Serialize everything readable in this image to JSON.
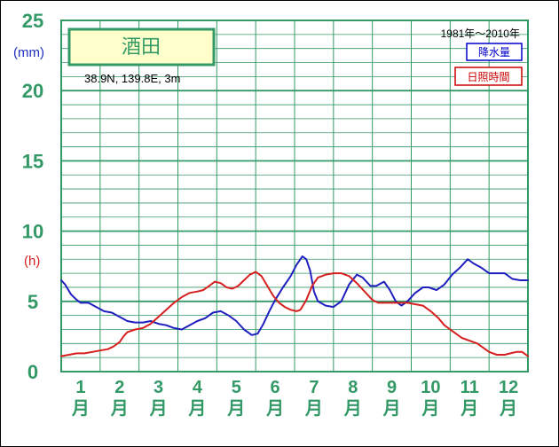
{
  "chart_data": {
    "type": "line",
    "station": "酒田",
    "location": "38.9N,  139.8E,  3m",
    "period": "1981年〜2010年",
    "left_units": {
      "precip": "(mm)",
      "sunshine": "(h)"
    },
    "y_ticks": [
      "0",
      "5",
      "10",
      "15",
      "20",
      "25"
    ],
    "ylim": [
      0,
      25
    ],
    "xlim": [
      0.5,
      12.5
    ],
    "x_labels": [
      {
        "num": "1",
        "unit": "月"
      },
      {
        "num": "2",
        "unit": "月"
      },
      {
        "num": "3",
        "unit": "月"
      },
      {
        "num": "4",
        "unit": "月"
      },
      {
        "num": "5",
        "unit": "月"
      },
      {
        "num": "6",
        "unit": "月"
      },
      {
        "num": "7",
        "unit": "月"
      },
      {
        "num": "8",
        "unit": "月"
      },
      {
        "num": "9",
        "unit": "月"
      },
      {
        "num": "10",
        "unit": "月"
      },
      {
        "num": "11",
        "unit": "月"
      },
      {
        "num": "12",
        "unit": "月"
      }
    ],
    "legend": [
      {
        "label": "降水量",
        "color": "#0000cc"
      },
      {
        "label": "日照時間",
        "color": "#cc0000"
      }
    ],
    "grid": true,
    "series": [
      {
        "name": "降水量",
        "color": "#1f1fbf",
        "points": [
          [
            0.5,
            6.5
          ],
          [
            0.6,
            6.2
          ],
          [
            0.75,
            5.5
          ],
          [
            0.9,
            5.1
          ],
          [
            1.0,
            4.9
          ],
          [
            1.2,
            4.9
          ],
          [
            1.4,
            4.6
          ],
          [
            1.6,
            4.3
          ],
          [
            1.8,
            4.2
          ],
          [
            2.0,
            3.9
          ],
          [
            2.2,
            3.6
          ],
          [
            2.4,
            3.5
          ],
          [
            2.6,
            3.5
          ],
          [
            2.8,
            3.6
          ],
          [
            3.0,
            3.4
          ],
          [
            3.2,
            3.3
          ],
          [
            3.4,
            3.1
          ],
          [
            3.6,
            3.0
          ],
          [
            3.8,
            3.3
          ],
          [
            4.0,
            3.6
          ],
          [
            4.2,
            3.8
          ],
          [
            4.4,
            4.2
          ],
          [
            4.6,
            4.3
          ],
          [
            4.8,
            4.0
          ],
          [
            5.0,
            3.6
          ],
          [
            5.2,
            3.0
          ],
          [
            5.4,
            2.6
          ],
          [
            5.55,
            2.7
          ],
          [
            5.7,
            3.4
          ],
          [
            5.85,
            4.3
          ],
          [
            6.0,
            5.1
          ],
          [
            6.2,
            6.0
          ],
          [
            6.4,
            6.8
          ],
          [
            6.55,
            7.6
          ],
          [
            6.7,
            8.2
          ],
          [
            6.8,
            8.0
          ],
          [
            6.9,
            7.2
          ],
          [
            7.0,
            5.7
          ],
          [
            7.1,
            5.0
          ],
          [
            7.3,
            4.7
          ],
          [
            7.5,
            4.6
          ],
          [
            7.7,
            5.0
          ],
          [
            7.9,
            6.2
          ],
          [
            8.1,
            6.9
          ],
          [
            8.25,
            6.7
          ],
          [
            8.45,
            6.1
          ],
          [
            8.6,
            6.1
          ],
          [
            8.8,
            6.4
          ],
          [
            8.95,
            5.8
          ],
          [
            9.1,
            5.0
          ],
          [
            9.25,
            4.7
          ],
          [
            9.4,
            5.0
          ],
          [
            9.6,
            5.6
          ],
          [
            9.8,
            6.0
          ],
          [
            9.95,
            6.0
          ],
          [
            10.15,
            5.8
          ],
          [
            10.35,
            6.2
          ],
          [
            10.55,
            6.9
          ],
          [
            10.75,
            7.4
          ],
          [
            10.95,
            8.0
          ],
          [
            11.1,
            7.7
          ],
          [
            11.3,
            7.4
          ],
          [
            11.5,
            7.0
          ],
          [
            11.7,
            7.0
          ],
          [
            11.9,
            7.0
          ],
          [
            12.1,
            6.6
          ],
          [
            12.3,
            6.5
          ],
          [
            12.5,
            6.5
          ]
        ]
      },
      {
        "name": "日照時間",
        "color": "#d61f1f",
        "points": [
          [
            0.5,
            1.1
          ],
          [
            0.7,
            1.2
          ],
          [
            0.9,
            1.3
          ],
          [
            1.1,
            1.3
          ],
          [
            1.3,
            1.4
          ],
          [
            1.5,
            1.5
          ],
          [
            1.7,
            1.6
          ],
          [
            1.85,
            1.8
          ],
          [
            2.0,
            2.1
          ],
          [
            2.1,
            2.5
          ],
          [
            2.2,
            2.8
          ],
          [
            2.4,
            3.0
          ],
          [
            2.6,
            3.1
          ],
          [
            2.8,
            3.4
          ],
          [
            3.0,
            3.9
          ],
          [
            3.2,
            4.4
          ],
          [
            3.4,
            4.9
          ],
          [
            3.6,
            5.3
          ],
          [
            3.8,
            5.6
          ],
          [
            4.0,
            5.7
          ],
          [
            4.15,
            5.8
          ],
          [
            4.3,
            6.1
          ],
          [
            4.45,
            6.4
          ],
          [
            4.6,
            6.3
          ],
          [
            4.75,
            6.0
          ],
          [
            4.9,
            5.9
          ],
          [
            5.05,
            6.1
          ],
          [
            5.2,
            6.5
          ],
          [
            5.35,
            6.9
          ],
          [
            5.5,
            7.1
          ],
          [
            5.65,
            6.8
          ],
          [
            5.8,
            6.1
          ],
          [
            5.95,
            5.4
          ],
          [
            6.1,
            4.9
          ],
          [
            6.25,
            4.6
          ],
          [
            6.4,
            4.4
          ],
          [
            6.55,
            4.3
          ],
          [
            6.65,
            4.4
          ],
          [
            6.8,
            5.1
          ],
          [
            6.95,
            6.1
          ],
          [
            7.1,
            6.7
          ],
          [
            7.3,
            6.9
          ],
          [
            7.5,
            7.0
          ],
          [
            7.7,
            7.0
          ],
          [
            7.9,
            6.8
          ],
          [
            8.1,
            6.3
          ],
          [
            8.3,
            5.7
          ],
          [
            8.5,
            5.1
          ],
          [
            8.65,
            4.9
          ],
          [
            8.8,
            4.9
          ],
          [
            9.0,
            4.9
          ],
          [
            9.2,
            4.9
          ],
          [
            9.4,
            4.9
          ],
          [
            9.6,
            4.8
          ],
          [
            9.8,
            4.7
          ],
          [
            10.0,
            4.3
          ],
          [
            10.2,
            3.8
          ],
          [
            10.35,
            3.3
          ],
          [
            10.5,
            3.0
          ],
          [
            10.65,
            2.7
          ],
          [
            10.8,
            2.4
          ],
          [
            11.0,
            2.2
          ],
          [
            11.2,
            2.0
          ],
          [
            11.35,
            1.7
          ],
          [
            11.5,
            1.4
          ],
          [
            11.7,
            1.2
          ],
          [
            11.9,
            1.2
          ],
          [
            12.05,
            1.3
          ],
          [
            12.2,
            1.4
          ],
          [
            12.35,
            1.4
          ],
          [
            12.5,
            1.1
          ]
        ]
      }
    ]
  }
}
